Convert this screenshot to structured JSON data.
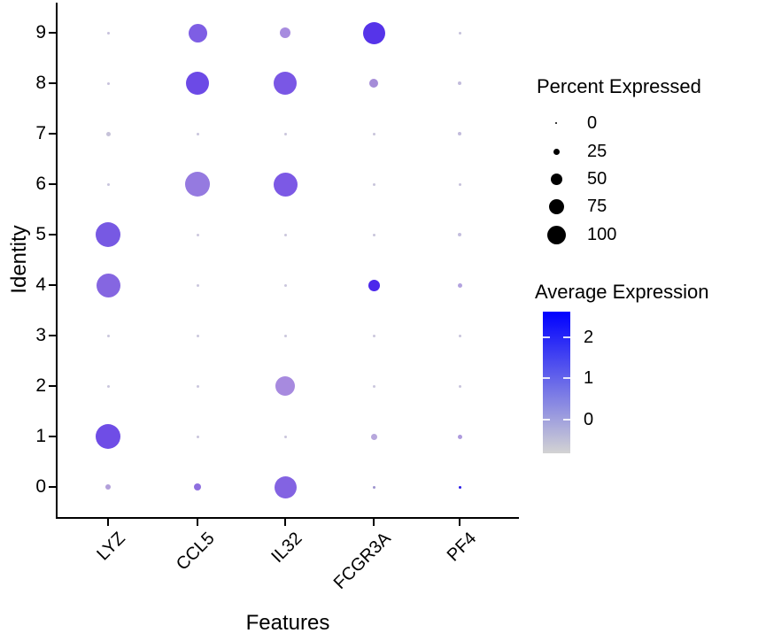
{
  "figure": {
    "y_axis": {
      "title": "Identity",
      "ticks": [
        "9",
        "8",
        "7",
        "6",
        "5",
        "4",
        "3",
        "2",
        "1",
        "0"
      ]
    },
    "x_axis": {
      "title": "Features",
      "ticks": [
        "LYZ",
        "CCL5",
        "IL32",
        "FCGR3A",
        "PF4"
      ]
    }
  },
  "legend_size": {
    "title": "Percent Expressed",
    "entries": [
      {
        "label": "0",
        "dia": 2
      },
      {
        "label": "25",
        "dia": 7
      },
      {
        "label": "50",
        "dia": 13
      },
      {
        "label": "75",
        "dia": 17
      },
      {
        "label": "100",
        "dia": 21
      }
    ]
  },
  "legend_color": {
    "title": "Average Expression",
    "tick_labels": [
      "2",
      "1",
      "0"
    ],
    "top_color": "#0000FF",
    "bottom_color": "#D3D3D3"
  },
  "chart_data": {
    "type": "scatter",
    "subtype": "dotplot",
    "title": "",
    "xlabel": "Features",
    "ylabel": "Identity",
    "features": [
      "LYZ",
      "CCL5",
      "IL32",
      "FCGR3A",
      "PF4"
    ],
    "identities": [
      9,
      8,
      7,
      6,
      5,
      4,
      3,
      2,
      1,
      0
    ],
    "size_encodes": "percent expressed (0-100)",
    "color_encodes": "average scaled expression (approx -0.9 to 2.6, lightgrey to blue)",
    "cells": [
      {
        "feature": "LYZ",
        "identity": 9,
        "pct": 5,
        "avg": -0.7,
        "dia": 3,
        "color": "#C7C2DC"
      },
      {
        "feature": "LYZ",
        "identity": 8,
        "pct": 5,
        "avg": -0.7,
        "dia": 3,
        "color": "#C7C2DC"
      },
      {
        "feature": "LYZ",
        "identity": 7,
        "pct": 14,
        "avg": -0.68,
        "dia": 5,
        "color": "#C6C2D9"
      },
      {
        "feature": "LYZ",
        "identity": 6,
        "pct": 5,
        "avg": -0.72,
        "dia": 3,
        "color": "#C9C5DD"
      },
      {
        "feature": "LYZ",
        "identity": 5,
        "pct": 100,
        "avg": 0.63,
        "dia": 28,
        "color": "#7759E3"
      },
      {
        "feature": "LYZ",
        "identity": 4,
        "pct": 97,
        "avg": 0.39,
        "dia": 27,
        "color": "#8566E1"
      },
      {
        "feature": "LYZ",
        "identity": 3,
        "pct": 5,
        "avg": -0.74,
        "dia": 3,
        "color": "#CBC7DD"
      },
      {
        "feature": "LYZ",
        "identity": 2,
        "pct": 5,
        "avg": -0.74,
        "dia": 3,
        "color": "#CBC7DD"
      },
      {
        "feature": "LYZ",
        "identity": 1,
        "pct": 100,
        "avg": 0.76,
        "dia": 28,
        "color": "#6F4DE6"
      },
      {
        "feature": "LYZ",
        "identity": 0,
        "pct": 20,
        "avg": -0.35,
        "dia": 6,
        "color": "#B2A0DA"
      },
      {
        "feature": "CCL5",
        "identity": 9,
        "pct": 73,
        "avg": 0.51,
        "dia": 21,
        "color": "#7E5EE4"
      },
      {
        "feature": "CCL5",
        "identity": 8,
        "pct": 93,
        "avg": 0.81,
        "dia": 26,
        "color": "#6C4AE6"
      },
      {
        "feature": "CCL5",
        "identity": 7,
        "pct": 4,
        "avg": -0.72,
        "dia": 3,
        "color": "#C9C5DC"
      },
      {
        "feature": "CCL5",
        "identity": 6,
        "pct": 100,
        "avg": 0.13,
        "dia": 28,
        "color": "#957AE0"
      },
      {
        "feature": "CCL5",
        "identity": 5,
        "pct": 3,
        "avg": -0.76,
        "dia": 3,
        "color": "#CCC8DE"
      },
      {
        "feature": "CCL5",
        "identity": 4,
        "pct": 4,
        "avg": -0.74,
        "dia": 3,
        "color": "#CBC7DD"
      },
      {
        "feature": "CCL5",
        "identity": 3,
        "pct": 4,
        "avg": -0.74,
        "dia": 3,
        "color": "#CBC7DD"
      },
      {
        "feature": "CCL5",
        "identity": 2,
        "pct": 4,
        "avg": -0.74,
        "dia": 3,
        "color": "#CBC7DD"
      },
      {
        "feature": "CCL5",
        "identity": 1,
        "pct": 5,
        "avg": -0.73,
        "dia": 3,
        "color": "#CAC6DC"
      },
      {
        "feature": "CCL5",
        "identity": 0,
        "pct": 28,
        "avg": 0.24,
        "dia": 8,
        "color": "#8E6FDF"
      },
      {
        "feature": "IL32",
        "identity": 9,
        "pct": 44,
        "avg": -0.17,
        "dia": 12,
        "color": "#A78CDF"
      },
      {
        "feature": "IL32",
        "identity": 8,
        "pct": 93,
        "avg": 0.58,
        "dia": 26,
        "color": "#7A57E5"
      },
      {
        "feature": "IL32",
        "identity": 7,
        "pct": 4,
        "avg": -0.73,
        "dia": 3,
        "color": "#CAC6DC"
      },
      {
        "feature": "IL32",
        "identity": 6,
        "pct": 97,
        "avg": 0.54,
        "dia": 27,
        "color": "#7C59E5"
      },
      {
        "feature": "IL32",
        "identity": 5,
        "pct": 4,
        "avg": -0.74,
        "dia": 3,
        "color": "#CBC7DD"
      },
      {
        "feature": "IL32",
        "identity": 4,
        "pct": 4,
        "avg": -0.74,
        "dia": 3,
        "color": "#CBC7DD"
      },
      {
        "feature": "IL32",
        "identity": 3,
        "pct": 4,
        "avg": -0.74,
        "dia": 3,
        "color": "#CBC7DD"
      },
      {
        "feature": "IL32",
        "identity": 2,
        "pct": 77,
        "avg": -0.17,
        "dia": 22,
        "color": "#A78ADF"
      },
      {
        "feature": "IL32",
        "identity": 1,
        "pct": 5,
        "avg": -0.73,
        "dia": 3,
        "color": "#CAC6DC"
      },
      {
        "feature": "IL32",
        "identity": 0,
        "pct": 90,
        "avg": 0.43,
        "dia": 25,
        "color": "#8363E2"
      },
      {
        "feature": "FCGR3A",
        "identity": 9,
        "pct": 90,
        "avg": 1.17,
        "dia": 25,
        "color": "#5634E9"
      },
      {
        "feature": "FCGR3A",
        "identity": 8,
        "pct": 37,
        "avg": -0.14,
        "dia": 10,
        "color": "#A58CD8"
      },
      {
        "feature": "FCGR3A",
        "identity": 7,
        "pct": 4,
        "avg": -0.72,
        "dia": 3,
        "color": "#C9C5DB"
      },
      {
        "feature": "FCGR3A",
        "identity": 6,
        "pct": 4,
        "avg": -0.72,
        "dia": 3,
        "color": "#C9C5DB"
      },
      {
        "feature": "FCGR3A",
        "identity": 5,
        "pct": 4,
        "avg": -0.72,
        "dia": 3,
        "color": "#C9C5DB"
      },
      {
        "feature": "FCGR3A",
        "identity": 4,
        "pct": 52,
        "avg": 1.34,
        "dia": 13,
        "color": "#4C28EB"
      },
      {
        "feature": "FCGR3A",
        "identity": 3,
        "pct": 4,
        "avg": -0.74,
        "dia": 3,
        "color": "#CBC7DD"
      },
      {
        "feature": "FCGR3A",
        "identity": 2,
        "pct": 4,
        "avg": -0.74,
        "dia": 3,
        "color": "#CBC7DD"
      },
      {
        "feature": "FCGR3A",
        "identity": 1,
        "pct": 24,
        "avg": -0.44,
        "dia": 7,
        "color": "#B7A7DC"
      },
      {
        "feature": "FCGR3A",
        "identity": 0,
        "pct": 5,
        "avg": -0.01,
        "dia": 3,
        "color": "#9D93CE"
      },
      {
        "feature": "PF4",
        "identity": 9,
        "pct": 4,
        "avg": -0.67,
        "dia": 3,
        "color": "#C5C0DA"
      },
      {
        "feature": "PF4",
        "identity": 8,
        "pct": 8,
        "avg": -0.62,
        "dia": 4,
        "color": "#C2BBDC"
      },
      {
        "feature": "PF4",
        "identity": 7,
        "pct": 8,
        "avg": -0.62,
        "dia": 4,
        "color": "#C2BBDC"
      },
      {
        "feature": "PF4",
        "identity": 6,
        "pct": 4,
        "avg": -0.68,
        "dia": 3,
        "color": "#C6C1DB"
      },
      {
        "feature": "PF4",
        "identity": 5,
        "pct": 9,
        "avg": -0.65,
        "dia": 4,
        "color": "#C4BEDE"
      },
      {
        "feature": "PF4",
        "identity": 4,
        "pct": 14,
        "avg": -0.37,
        "dia": 5,
        "color": "#B3A3DF"
      },
      {
        "feature": "PF4",
        "identity": 3,
        "pct": 4,
        "avg": -0.71,
        "dia": 3,
        "color": "#C8C4DC"
      },
      {
        "feature": "PF4",
        "identity": 2,
        "pct": 4,
        "avg": -0.71,
        "dia": 3,
        "color": "#C8C4DC"
      },
      {
        "feature": "PF4",
        "identity": 1,
        "pct": 15,
        "avg": -0.29,
        "dia": 5,
        "color": "#AE9BDD"
      },
      {
        "feature": "PF4",
        "identity": 0,
        "pct": 5,
        "avg": 1.9,
        "dia": 3,
        "color": "#2A1BE8"
      }
    ]
  }
}
